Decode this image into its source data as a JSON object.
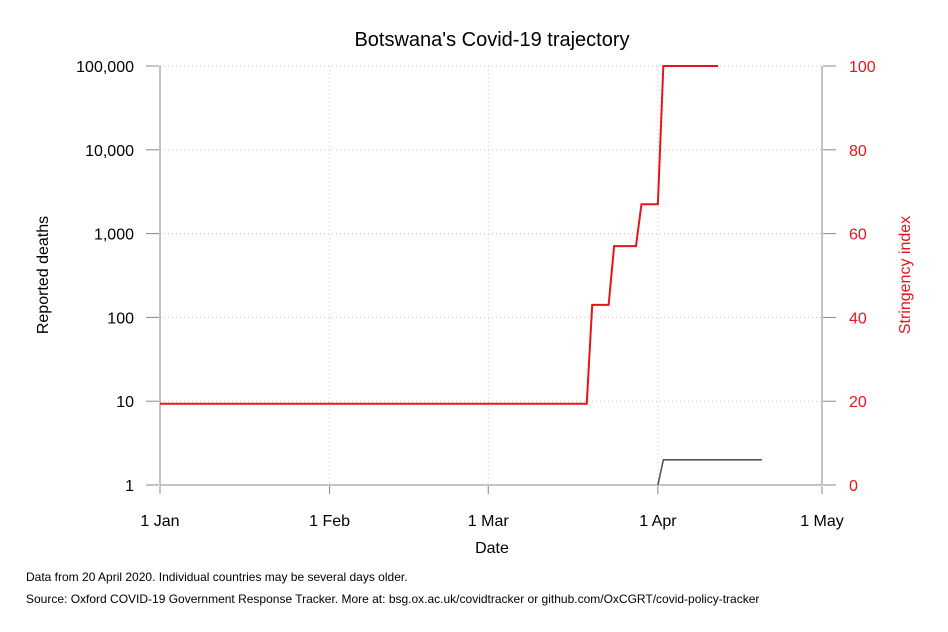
{
  "chart_data": {
    "type": "line",
    "title": "Botswana's Covid-19 trajectory",
    "xlabel": "Date",
    "ylabel_left": "Reported deaths",
    "ylabel_right": "Stringency index",
    "x_ticks": [
      "1 Jan",
      "1 Feb",
      "1 Mar",
      "1 Apr",
      "1 May"
    ],
    "x_tick_dates": [
      "2020-01-01",
      "2020-02-01",
      "2020-03-01",
      "2020-04-01",
      "2020-05-01"
    ],
    "xlim": [
      "2020-01-01",
      "2020-05-01"
    ],
    "y_left": {
      "scale": "log",
      "ylim": [
        1,
        100000
      ],
      "ticks": [
        1,
        10,
        100,
        1000,
        10000,
        100000
      ],
      "tick_labels": [
        "1",
        "10",
        "100",
        "1,000",
        "10,000",
        "100,000"
      ]
    },
    "y_right": {
      "scale": "linear",
      "ylim": [
        0,
        100
      ],
      "ticks": [
        0,
        20,
        40,
        60,
        80,
        100
      ],
      "tick_labels": [
        "0",
        "20",
        "40",
        "60",
        "80",
        "100"
      ]
    },
    "grid": true,
    "series": [
      {
        "axis": "right",
        "color": "#e8141c",
        "step": true,
        "points": [
          {
            "x": "2020-01-01",
            "y": 19.4
          },
          {
            "x": "2020-03-19",
            "y": 19.4
          },
          {
            "x": "2020-03-20",
            "y": 43
          },
          {
            "x": "2020-03-23",
            "y": 43
          },
          {
            "x": "2020-03-24",
            "y": 57
          },
          {
            "x": "2020-03-28",
            "y": 57
          },
          {
            "x": "2020-03-29",
            "y": 67
          },
          {
            "x": "2020-04-01",
            "y": 67
          },
          {
            "x": "2020-04-02",
            "y": 100
          },
          {
            "x": "2020-04-12",
            "y": 100
          }
        ]
      },
      {
        "axis": "left",
        "color": "#555555",
        "step": true,
        "points": [
          {
            "x": "2020-04-01",
            "y": 1
          },
          {
            "x": "2020-04-02",
            "y": 2
          },
          {
            "x": "2020-04-20",
            "y": 2
          }
        ]
      }
    ]
  },
  "notes": {
    "line1": "Data from 20 April 2020. Individual countries may be several days older.",
    "line2": "Source: Oxford COVID-19 Government Response Tracker. More at: bsg.ox.ac.uk/covidtracker or github.com/OxCGRT/covid-policy-tracker"
  }
}
